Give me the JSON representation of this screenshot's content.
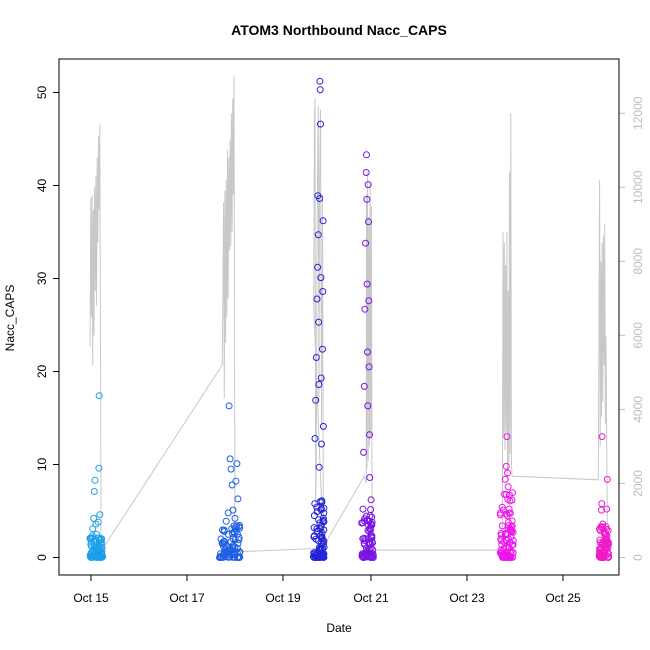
{
  "chart_data": {
    "type": "scatter",
    "title": "ATOM3 Northbound Nacc_CAPS",
    "xlabel": "Date",
    "ylabel": "Nacc_CAPS",
    "xlim": [
      "2008-10-14T00:00",
      "2008-10-26T00:00"
    ],
    "ylim": [
      0,
      52
    ],
    "x_ticks": [
      "Oct 15",
      "Oct 17",
      "Oct 19",
      "Oct 21",
      "Oct 23",
      "Oct 25"
    ],
    "y_ticks": [
      "0",
      "10",
      "20",
      "30",
      "40",
      "50"
    ],
    "y2_ticks": [
      "0",
      "2000",
      "4000",
      "6000",
      "8000",
      "10000",
      "12000"
    ],
    "y2lim": [
      0,
      12500
    ],
    "grid": false,
    "secondary_series_color": "#c8c8c8",
    "series": [
      {
        "color": "#1e9fe8",
        "points": [
          [
            "2008-10-14T16:10",
            0.3
          ],
          [
            "2008-10-14T16:40",
            1.2
          ],
          [
            "2008-10-14T17:00",
            2.1
          ],
          [
            "2008-10-14T17:20",
            3.1
          ],
          [
            "2008-10-14T17:50",
            4.2
          ],
          [
            "2008-10-14T18:10",
            7.1
          ],
          [
            "2008-10-14T18:30",
            8.3
          ],
          [
            "2008-10-14T19:00",
            3.6
          ],
          [
            "2008-10-14T19:20",
            2.5
          ],
          [
            "2008-10-14T19:50",
            0.9
          ],
          [
            "2008-10-14T20:10",
            3.8
          ],
          [
            "2008-10-14T20:30",
            9.6
          ],
          [
            "2008-10-14T20:40",
            17.4
          ],
          [
            "2008-10-14T21:00",
            4.6
          ],
          [
            "2008-10-14T21:20",
            1.6
          ],
          [
            "2008-10-14T21:40",
            0.5
          ],
          [
            "2008-10-14T22:00",
            1.1
          ]
        ],
        "base": [
          "2008-10-14T16:00",
          "2008-10-14T22:30",
          0,
          2.5
        ]
      },
      {
        "color": "#1f5fe5",
        "points": [
          [
            "2008-10-17T11:00",
            0.4
          ],
          [
            "2008-10-17T12:00",
            1.5
          ],
          [
            "2008-10-17T13:00",
            2.8
          ],
          [
            "2008-10-17T14:00",
            3.9
          ],
          [
            "2008-10-17T15:00",
            4.8
          ],
          [
            "2008-10-17T15:30",
            16.3
          ],
          [
            "2008-10-17T16:00",
            10.6
          ],
          [
            "2008-10-17T16:30",
            9.5
          ],
          [
            "2008-10-17T17:00",
            7.8
          ],
          [
            "2008-10-17T17:30",
            5.1
          ],
          [
            "2008-10-17T18:00",
            3.4
          ],
          [
            "2008-10-17T18:30",
            4.2
          ],
          [
            "2008-10-17T19:00",
            8.2
          ],
          [
            "2008-10-17T19:30",
            10.1
          ],
          [
            "2008-10-17T20:00",
            6.3
          ],
          [
            "2008-10-17T20:30",
            1.9
          ],
          [
            "2008-10-17T21:00",
            0.6
          ]
        ],
        "base": [
          "2008-10-17T10:30",
          "2008-10-17T21:00",
          0,
          3.5
        ]
      },
      {
        "color": "#2323d6",
        "points": [
          [
            "2008-10-19T11:00",
            0.5
          ],
          [
            "2008-10-19T11:20",
            4.5
          ],
          [
            "2008-10-19T11:40",
            12.8
          ],
          [
            "2008-10-19T12:00",
            16.9
          ],
          [
            "2008-10-19T12:20",
            21.5
          ],
          [
            "2008-10-19T12:40",
            27.8
          ],
          [
            "2008-10-19T13:00",
            31.2
          ],
          [
            "2008-10-19T13:10",
            38.9
          ],
          [
            "2008-10-19T13:20",
            34.7
          ],
          [
            "2008-10-19T13:30",
            25.3
          ],
          [
            "2008-10-19T13:40",
            18.6
          ],
          [
            "2008-10-19T13:50",
            9.7
          ],
          [
            "2008-10-19T14:00",
            38.6
          ],
          [
            "2008-10-19T14:10",
            51.2
          ],
          [
            "2008-10-19T14:20",
            50.3
          ],
          [
            "2008-10-19T14:30",
            46.6
          ],
          [
            "2008-10-19T14:40",
            30.1
          ],
          [
            "2008-10-19T14:50",
            19.3
          ],
          [
            "2008-10-19T15:00",
            12.2
          ],
          [
            "2008-10-19T15:10",
            6.1
          ],
          [
            "2008-10-19T15:20",
            2.2
          ],
          [
            "2008-10-19T15:30",
            22.4
          ],
          [
            "2008-10-19T15:40",
            28.6
          ],
          [
            "2008-10-19T15:50",
            36.2
          ],
          [
            "2008-10-19T16:00",
            14.1
          ],
          [
            "2008-10-19T16:10",
            5.3
          ],
          [
            "2008-10-19T16:20",
            1.1
          ]
        ],
        "base": [
          "2008-10-19T10:50",
          "2008-10-19T16:30",
          0,
          6.5
        ]
      },
      {
        "color": "#7a14e2",
        "points": [
          [
            "2008-10-20T12:00",
            0.4
          ],
          [
            "2008-10-20T12:20",
            5.2
          ],
          [
            "2008-10-20T12:40",
            11.3
          ],
          [
            "2008-10-20T13:00",
            18.4
          ],
          [
            "2008-10-20T13:20",
            26.7
          ],
          [
            "2008-10-20T13:40",
            33.8
          ],
          [
            "2008-10-20T14:00",
            41.4
          ],
          [
            "2008-10-20T14:10",
            43.3
          ],
          [
            "2008-10-20T14:20",
            38.5
          ],
          [
            "2008-10-20T14:30",
            29.4
          ],
          [
            "2008-10-20T14:40",
            22.1
          ],
          [
            "2008-10-20T14:50",
            16.3
          ],
          [
            "2008-10-20T15:00",
            40.1
          ],
          [
            "2008-10-20T15:10",
            36.1
          ],
          [
            "2008-10-20T15:20",
            27.6
          ],
          [
            "2008-10-20T15:30",
            20.5
          ],
          [
            "2008-10-20T15:40",
            13.2
          ],
          [
            "2008-10-20T15:50",
            8.6
          ],
          [
            "2008-10-20T16:00",
            4.5
          ],
          [
            "2008-10-20T16:10",
            1.5
          ],
          [
            "2008-10-20T16:30",
            6.2
          ],
          [
            "2008-10-20T17:00",
            3.8
          ],
          [
            "2008-10-20T17:20",
            0.8
          ]
        ],
        "base": [
          "2008-10-20T11:40",
          "2008-10-20T17:40",
          0,
          5.5
        ]
      },
      {
        "color": "#ee14ee",
        "points": [
          [
            "2008-10-23T11:00",
            0.5
          ],
          [
            "2008-10-23T11:30",
            1.8
          ],
          [
            "2008-10-23T12:00",
            3.4
          ],
          [
            "2008-10-23T12:30",
            5.1
          ],
          [
            "2008-10-23T13:00",
            6.8
          ],
          [
            "2008-10-23T13:30",
            8.4
          ],
          [
            "2008-10-23T14:00",
            9.8
          ],
          [
            "2008-10-23T14:20",
            13.0
          ],
          [
            "2008-10-23T14:40",
            9.1
          ],
          [
            "2008-10-23T15:00",
            7.6
          ],
          [
            "2008-10-23T15:30",
            5.2
          ],
          [
            "2008-10-23T16:00",
            3.1
          ],
          [
            "2008-10-23T16:30",
            2.2
          ],
          [
            "2008-10-23T17:00",
            1.3
          ],
          [
            "2008-10-23T17:30",
            0.5
          ]
        ],
        "base": [
          "2008-10-23T10:50",
          "2008-10-23T17:40",
          0,
          7.0
        ]
      },
      {
        "color": "#f01bcb",
        "points": [
          [
            "2008-10-25T14:00",
            0.3
          ],
          [
            "2008-10-25T14:20",
            1.6
          ],
          [
            "2008-10-25T14:40",
            3.3
          ],
          [
            "2008-10-25T15:00",
            5.1
          ],
          [
            "2008-10-25T15:10",
            5.8
          ],
          [
            "2008-10-25T15:20",
            13.0
          ],
          [
            "2008-10-25T15:40",
            3.6
          ],
          [
            "2008-10-25T16:00",
            1.2
          ],
          [
            "2008-10-25T16:20",
            2.8
          ],
          [
            "2008-10-25T16:40",
            1.9
          ],
          [
            "2008-10-25T17:00",
            2.6
          ],
          [
            "2008-10-25T17:20",
            3.3
          ],
          [
            "2008-10-25T17:40",
            5.2
          ],
          [
            "2008-10-25T18:00",
            8.4
          ],
          [
            "2008-10-25T18:20",
            1.4
          ],
          [
            "2008-10-25T18:40",
            0.4
          ]
        ],
        "base": [
          "2008-10-25T13:50",
          "2008-10-25T18:50",
          0,
          3.5
        ]
      }
    ],
    "secondary_series": [
      [
        "2008-10-14T16:00",
        5700
      ],
      [
        "2008-10-14T16:20",
        9700
      ],
      [
        "2008-10-14T16:40",
        6500
      ],
      [
        "2008-10-14T17:00",
        9800
      ],
      [
        "2008-10-14T17:20",
        5200
      ],
      [
        "2008-10-14T17:40",
        9400
      ],
      [
        "2008-10-14T18:00",
        6000
      ],
      [
        "2008-10-14T18:20",
        10000
      ],
      [
        "2008-10-14T18:40",
        7200
      ],
      [
        "2008-10-14T19:00",
        10300
      ],
      [
        "2008-10-14T19:20",
        6800
      ],
      [
        "2008-10-14T19:40",
        10800
      ],
      [
        "2008-10-14T20:00",
        8500
      ],
      [
        "2008-10-14T20:20",
        11400
      ],
      [
        "2008-10-14T20:40",
        9400
      ],
      [
        "2008-10-14T21:00",
        11700
      ],
      [
        "2008-10-14T21:40",
        500
      ],
      [
        "2008-10-14T22:00",
        200
      ],
      [
        "2008-10-17T12:00",
        5200
      ],
      [
        "2008-10-17T12:40",
        9600
      ],
      [
        "2008-10-17T13:00",
        4300
      ],
      [
        "2008-10-17T13:20",
        9900
      ],
      [
        "2008-10-17T13:40",
        5800
      ],
      [
        "2008-10-17T14:00",
        10200
      ],
      [
        "2008-10-17T14:20",
        6500
      ],
      [
        "2008-10-17T14:40",
        11000
      ],
      [
        "2008-10-17T15:00",
        7000
      ],
      [
        "2008-10-17T15:20",
        10800
      ],
      [
        "2008-10-17T15:40",
        8300
      ],
      [
        "2008-10-17T16:00",
        11300
      ],
      [
        "2008-10-17T16:20",
        8400
      ],
      [
        "2008-10-17T16:40",
        12000
      ],
      [
        "2008-10-17T17:00",
        8800
      ],
      [
        "2008-10-17T17:20",
        12400
      ],
      [
        "2008-10-17T17:40",
        9800
      ],
      [
        "2008-10-17T18:00",
        13000
      ],
      [
        "2008-10-17T18:30",
        150
      ],
      [
        "2008-10-19T16:00",
        250
      ],
      [
        "2008-10-19T11:00",
        6800
      ],
      [
        "2008-10-19T11:20",
        11700
      ],
      [
        "2008-10-19T11:40",
        12400
      ],
      [
        "2008-10-19T12:00",
        1200
      ],
      [
        "2008-10-19T12:20",
        3000
      ],
      [
        "2008-10-19T12:40",
        7800
      ],
      [
        "2008-10-19T13:00",
        10600
      ],
      [
        "2008-10-19T13:20",
        12200
      ],
      [
        "2008-10-19T13:40",
        4200
      ],
      [
        "2008-10-19T14:00",
        10100
      ],
      [
        "2008-10-19T14:30",
        12100
      ],
      [
        "2008-10-19T15:00",
        3600
      ],
      [
        "2008-10-19T15:30",
        9800
      ],
      [
        "2008-10-19T16:00",
        300
      ],
      [
        "2008-10-20T13:00",
        2200
      ],
      [
        "2008-10-20T14:00",
        2000
      ],
      [
        "2008-10-20T14:10",
        9800
      ],
      [
        "2008-10-20T14:20",
        2400
      ],
      [
        "2008-10-20T14:40",
        10400
      ],
      [
        "2008-10-20T15:00",
        2600
      ],
      [
        "2008-10-20T15:20",
        9200
      ],
      [
        "2008-10-20T15:40",
        3000
      ],
      [
        "2008-10-20T16:00",
        10100
      ],
      [
        "2008-10-20T16:20",
        3200
      ],
      [
        "2008-10-20T16:40",
        9500
      ],
      [
        "2008-10-20T17:00",
        200
      ],
      [
        "2008-10-23T12:00",
        200
      ],
      [
        "2008-10-23T12:20",
        8800
      ],
      [
        "2008-10-23T12:40",
        3300
      ],
      [
        "2008-10-23T13:00",
        8500
      ],
      [
        "2008-10-23T13:20",
        2900
      ],
      [
        "2008-10-23T13:40",
        7900
      ],
      [
        "2008-10-23T14:00",
        3400
      ],
      [
        "2008-10-23T14:20",
        8800
      ],
      [
        "2008-10-23T14:40",
        2100
      ],
      [
        "2008-10-23T15:00",
        7200
      ],
      [
        "2008-10-23T15:20",
        2500
      ],
      [
        "2008-10-23T15:40",
        10400
      ],
      [
        "2008-10-23T16:00",
        2800
      ],
      [
        "2008-10-23T16:20",
        12000
      ],
      [
        "2008-10-23T16:40",
        2600
      ],
      [
        "2008-10-23T17:00",
        2200
      ],
      [
        "2008-10-25T13:20",
        2100
      ],
      [
        "2008-10-25T14:00",
        10200
      ],
      [
        "2008-10-25T14:20",
        3000
      ],
      [
        "2008-10-25T14:40",
        8000
      ],
      [
        "2008-10-25T15:00",
        3800
      ],
      [
        "2008-10-25T15:20",
        8500
      ],
      [
        "2008-10-25T15:40",
        4200
      ],
      [
        "2008-10-25T16:00",
        8700
      ],
      [
        "2008-10-25T16:20",
        5200
      ],
      [
        "2008-10-25T16:40",
        9000
      ],
      [
        "2008-10-25T17:00",
        3600
      ],
      [
        "2008-10-25T17:20",
        6000
      ],
      [
        "2008-10-25T18:00",
        900
      ]
    ]
  }
}
